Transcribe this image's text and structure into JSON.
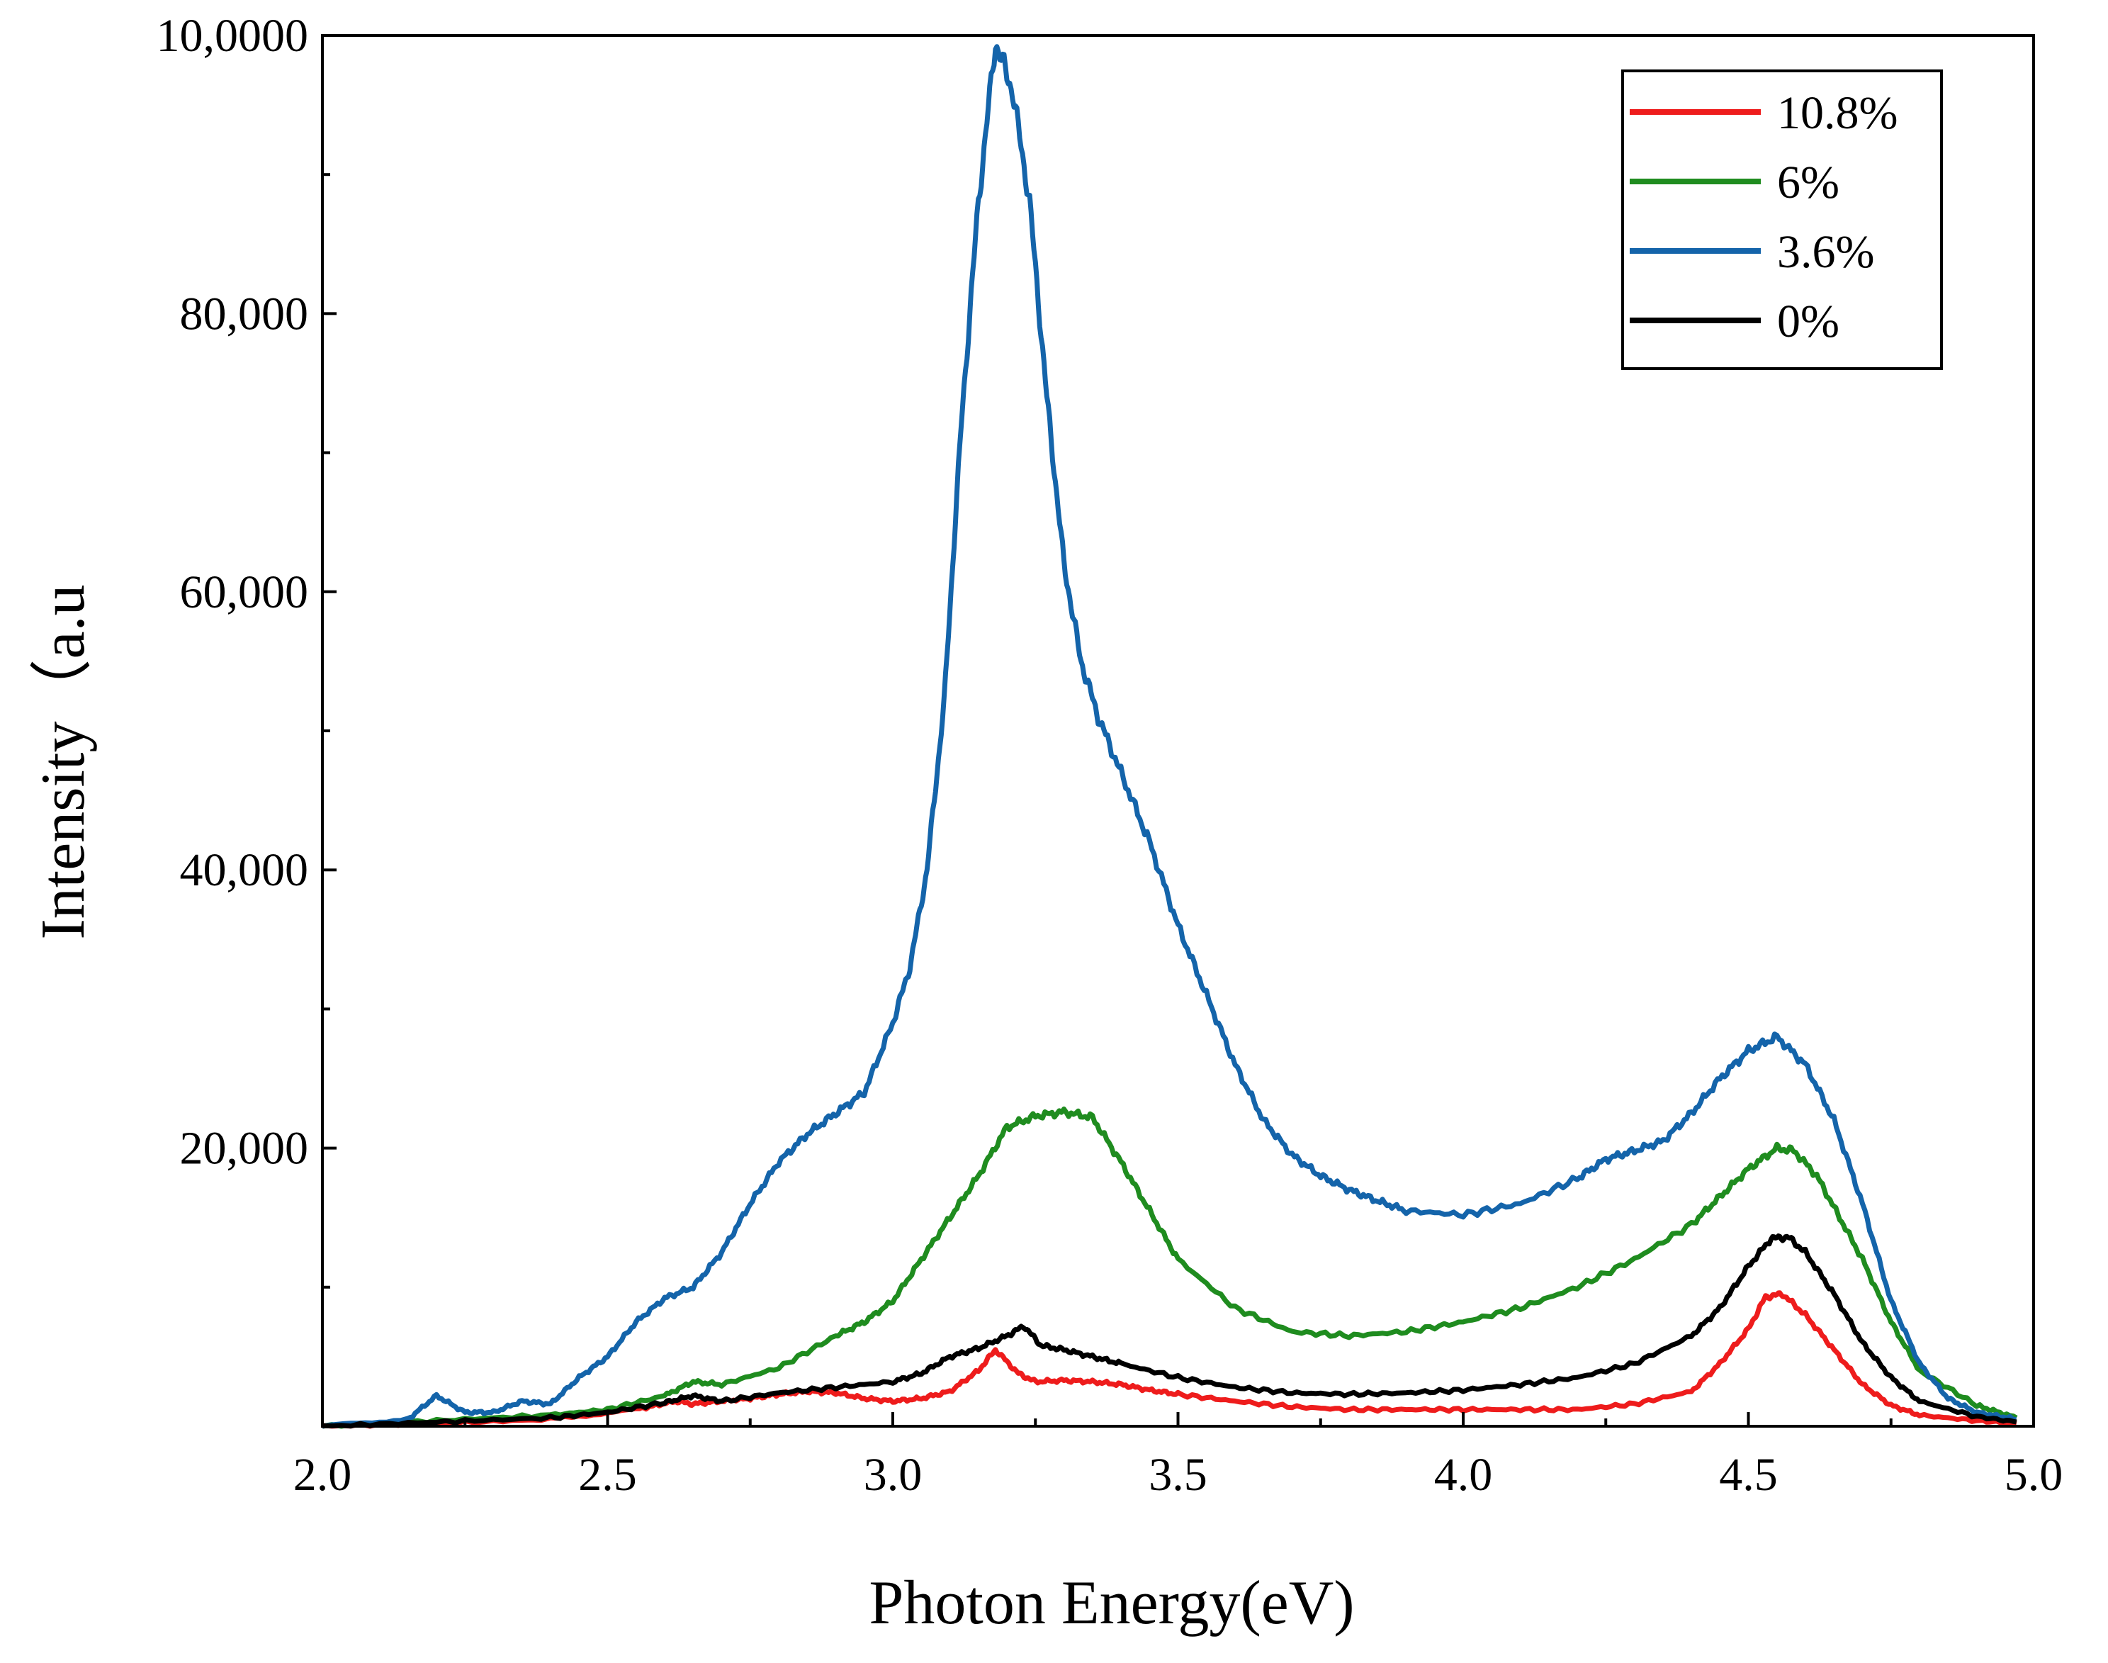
{
  "chart_data": {
    "type": "line",
    "title": "",
    "xlabel": "Photon Energy(eV)",
    "ylabel": "Intensity（a.u",
    "xlim": [
      2.0,
      5.0
    ],
    "ylim": [
      0,
      100000
    ],
    "xticks": [
      2.0,
      2.5,
      3.0,
      3.5,
      4.0,
      4.5,
      5.0
    ],
    "x_tick_labels": [
      "2.0",
      "2.5",
      "3.0",
      "3.5",
      "4.0",
      "4.5",
      "5.0"
    ],
    "yticks": [
      20000,
      40000,
      60000,
      80000,
      100000
    ],
    "y_tick_labels": [
      "20,000",
      "40,000",
      "60,000",
      "80,000",
      "10,0000"
    ],
    "legend_position": "top-right",
    "series": [
      {
        "name": "10.8%",
        "color": "#ee1c1c",
        "x": [
          2.0,
          2.2,
          2.4,
          2.55,
          2.62,
          2.65,
          2.7,
          2.75,
          2.8,
          2.85,
          2.9,
          2.95,
          3.0,
          3.05,
          3.1,
          3.15,
          3.18,
          3.22,
          3.25,
          3.3,
          3.35,
          3.4,
          3.45,
          3.5,
          3.6,
          3.7,
          3.8,
          3.9,
          4.0,
          4.1,
          4.2,
          4.3,
          4.4,
          4.45,
          4.5,
          4.53,
          4.56,
          4.6,
          4.65,
          4.7,
          4.75,
          4.8,
          4.9,
          4.97
        ],
        "values": [
          0,
          200,
          500,
          1200,
          1800,
          1600,
          1800,
          2000,
          2300,
          2500,
          2400,
          2000,
          1800,
          2000,
          2500,
          4000,
          5500,
          3800,
          3200,
          3300,
          3200,
          3000,
          2600,
          2300,
          1800,
          1400,
          1200,
          1200,
          1200,
          1200,
          1200,
          1600,
          2500,
          4500,
          7000,
          9300,
          9500,
          8000,
          5500,
          3000,
          1500,
          800,
          400,
          200
        ]
      },
      {
        "name": "6%",
        "color": "#1f8c1f",
        "x": [
          2.0,
          2.2,
          2.4,
          2.5,
          2.6,
          2.65,
          2.7,
          2.8,
          2.9,
          2.95,
          3.0,
          3.05,
          3.1,
          3.15,
          3.2,
          3.25,
          3.3,
          3.35,
          3.4,
          3.45,
          3.5,
          3.6,
          3.7,
          3.8,
          3.9,
          4.0,
          4.1,
          4.2,
          4.3,
          4.4,
          4.45,
          4.5,
          4.55,
          4.58,
          4.62,
          4.66,
          4.7,
          4.75,
          4.8,
          4.9,
          4.97
        ],
        "values": [
          0,
          400,
          800,
          1200,
          2200,
          3200,
          3000,
          4200,
          6500,
          7500,
          9000,
          12000,
          15000,
          18000,
          21500,
          22300,
          22600,
          22200,
          19000,
          15500,
          12000,
          8500,
          6800,
          6500,
          6800,
          7500,
          8500,
          10000,
          12000,
          14500,
          16500,
          18500,
          20000,
          19800,
          18000,
          15000,
          12000,
          7500,
          4000,
          1500,
          600
        ]
      },
      {
        "name": "3.6%",
        "color": "#1464aa",
        "x": [
          2.0,
          2.15,
          2.2,
          2.25,
          2.3,
          2.35,
          2.4,
          2.45,
          2.5,
          2.55,
          2.6,
          2.65,
          2.7,
          2.75,
          2.8,
          2.85,
          2.9,
          2.95,
          3.0,
          3.03,
          3.06,
          3.09,
          3.12,
          3.15,
          3.18,
          3.21,
          3.24,
          3.27,
          3.3,
          3.33,
          3.36,
          3.4,
          3.45,
          3.5,
          3.55,
          3.6,
          3.65,
          3.7,
          3.75,
          3.8,
          3.85,
          3.9,
          4.0,
          4.1,
          4.2,
          4.25,
          4.3,
          4.35,
          4.4,
          4.45,
          4.5,
          4.55,
          4.6,
          4.65,
          4.7,
          4.75,
          4.8,
          4.85,
          4.9,
          4.97
        ],
        "values": [
          0,
          500,
          2200,
          1000,
          1000,
          1800,
          1600,
          3500,
          5000,
          7500,
          9200,
          10000,
          12500,
          16000,
          19000,
          21000,
          22500,
          24000,
          29000,
          33000,
          40000,
          52000,
          72000,
          88000,
          99500,
          96000,
          88000,
          74000,
          62000,
          55000,
          51000,
          47000,
          42000,
          36000,
          31000,
          26000,
          22000,
          19500,
          18000,
          17000,
          16200,
          15500,
          15200,
          16000,
          17800,
          19200,
          19800,
          20500,
          22500,
          25000,
          27000,
          28000,
          26000,
          22000,
          16000,
          9000,
          4500,
          2000,
          1000,
          500
        ]
      },
      {
        "name": "0%",
        "color": "#000000",
        "x": [
          2.0,
          2.2,
          2.4,
          2.5,
          2.6,
          2.65,
          2.7,
          2.8,
          2.9,
          3.0,
          3.05,
          3.1,
          3.15,
          3.2,
          3.23,
          3.26,
          3.3,
          3.35,
          3.4,
          3.5,
          3.6,
          3.7,
          3.8,
          3.9,
          4.0,
          4.1,
          4.2,
          4.3,
          4.4,
          4.45,
          4.5,
          4.54,
          4.57,
          4.6,
          4.65,
          4.7,
          4.75,
          4.8,
          4.9,
          4.97
        ],
        "values": [
          0,
          300,
          600,
          1000,
          1700,
          2200,
          1800,
          2400,
          2800,
          3200,
          3800,
          5000,
          5600,
          6500,
          7200,
          5800,
          5500,
          5000,
          4500,
          3500,
          2800,
          2400,
          2300,
          2400,
          2600,
          3000,
          3500,
          4500,
          6500,
          8500,
          11500,
          13500,
          13600,
          12500,
          9500,
          6000,
          3500,
          1800,
          700,
          300
        ]
      }
    ]
  }
}
